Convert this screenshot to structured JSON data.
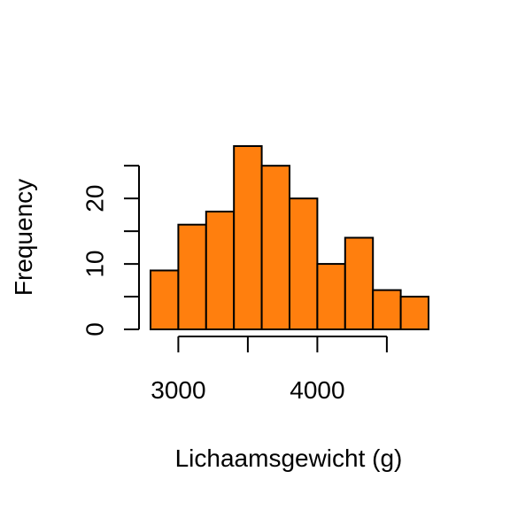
{
  "chart_data": {
    "type": "bar",
    "subtype": "histogram",
    "xlabel": "Lichaamsgewicht (g)",
    "ylabel": "Frequency",
    "bins": [
      {
        "start": 2800,
        "end": 3000,
        "count": 9
      },
      {
        "start": 3000,
        "end": 3200,
        "count": 16
      },
      {
        "start": 3200,
        "end": 3400,
        "count": 18
      },
      {
        "start": 3400,
        "end": 3600,
        "count": 28
      },
      {
        "start": 3600,
        "end": 3800,
        "count": 25
      },
      {
        "start": 3800,
        "end": 4000,
        "count": 20
      },
      {
        "start": 4000,
        "end": 4200,
        "count": 10
      },
      {
        "start": 4200,
        "end": 4400,
        "count": 14
      },
      {
        "start": 4400,
        "end": 4600,
        "count": 6
      },
      {
        "start": 4600,
        "end": 4800,
        "count": 5
      }
    ],
    "x_ticks": [
      3000,
      3500,
      4000,
      4500
    ],
    "x_tick_labels": [
      "3000",
      "",
      "4000",
      ""
    ],
    "y_ticks": [
      0,
      5,
      10,
      15,
      20,
      25
    ],
    "y_tick_labels": [
      "0",
      "",
      "10",
      "",
      "20",
      ""
    ],
    "xlim": [
      2800,
      4800
    ],
    "ylim": [
      0,
      28
    ],
    "grid": false,
    "legend": "none",
    "bar_color": "#FF7F0E",
    "edge_color": "#000000"
  }
}
